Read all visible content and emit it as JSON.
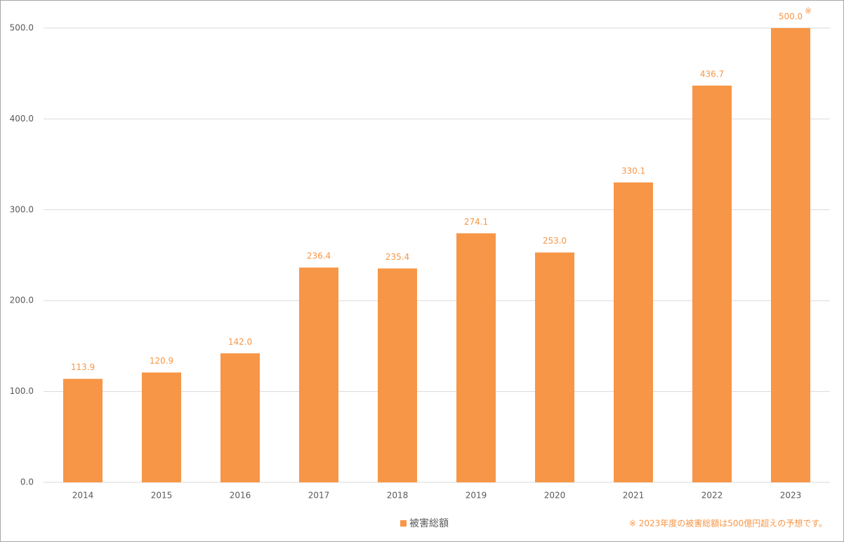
{
  "chart_data": {
    "type": "bar",
    "categories": [
      "2014",
      "2015",
      "2016",
      "2017",
      "2018",
      "2019",
      "2020",
      "2021",
      "2022",
      "2023"
    ],
    "series": [
      {
        "name": "被害総額",
        "color": "#f79646",
        "values": [
          113.9,
          120.9,
          142.0,
          236.4,
          235.4,
          274.1,
          253.0,
          330.1,
          436.7,
          500.0
        ],
        "value_labels": [
          "113.9",
          "120.9",
          "142.0",
          "236.4",
          "235.4",
          "274.1",
          "253.0",
          "330.1",
          "436.7",
          "500.0"
        ]
      }
    ],
    "ylim": [
      0,
      500
    ],
    "yticks": [
      {
        "value": 0,
        "label": "0.0"
      },
      {
        "value": 100,
        "label": "100.0"
      },
      {
        "value": 200,
        "label": "200.0"
      },
      {
        "value": 300,
        "label": "300.0"
      },
      {
        "value": 400,
        "label": "400.0"
      },
      {
        "value": 500,
        "label": "500.0"
      }
    ],
    "grid": true,
    "annotation_mark": "※",
    "footnote": "※ 2023年度の被害総額は500億円超えの予想です。"
  }
}
